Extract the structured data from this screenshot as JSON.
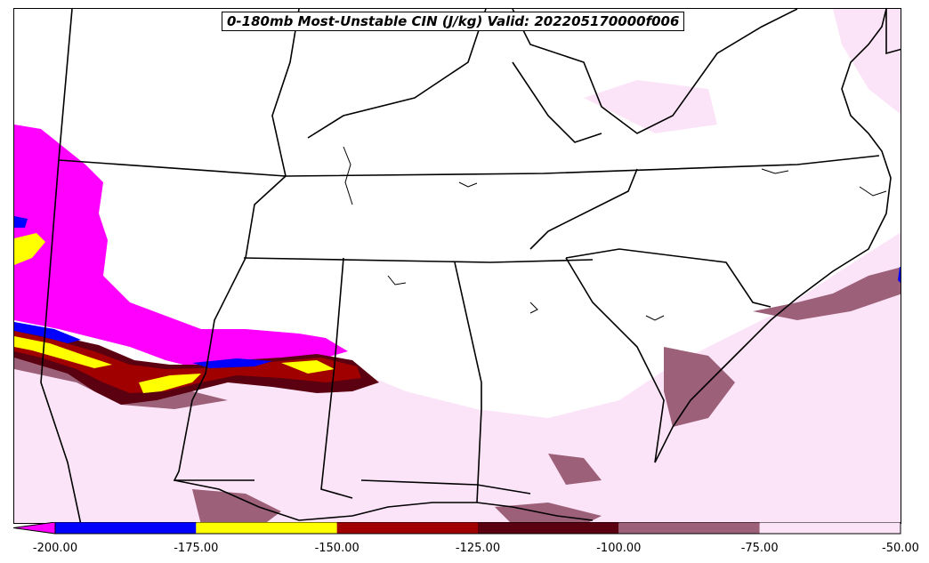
{
  "title": "0-180mb Most-Unstable CIN (J/kg) Valid: 202205170000f006",
  "colorbar": {
    "ticks": [
      "-200.00",
      "-175.00",
      "-150.00",
      "-125.00",
      "-100.00",
      "-75.00",
      "-50.00"
    ],
    "bins": [
      {
        "range": "< -200",
        "color": "#ff00ff"
      },
      {
        "range": "-200 to -175",
        "color": "#0000ff"
      },
      {
        "range": "-175 to -150",
        "color": "#ffff00"
      },
      {
        "range": "-150 to -125",
        "color": "#a00000"
      },
      {
        "range": "-125 to -100",
        "color": "#5a0010"
      },
      {
        "range": "-100 to -75",
        "color": "#9c6078"
      },
      {
        "range": "-75 to -50",
        "color": "#fce4f8"
      }
    ]
  }
}
